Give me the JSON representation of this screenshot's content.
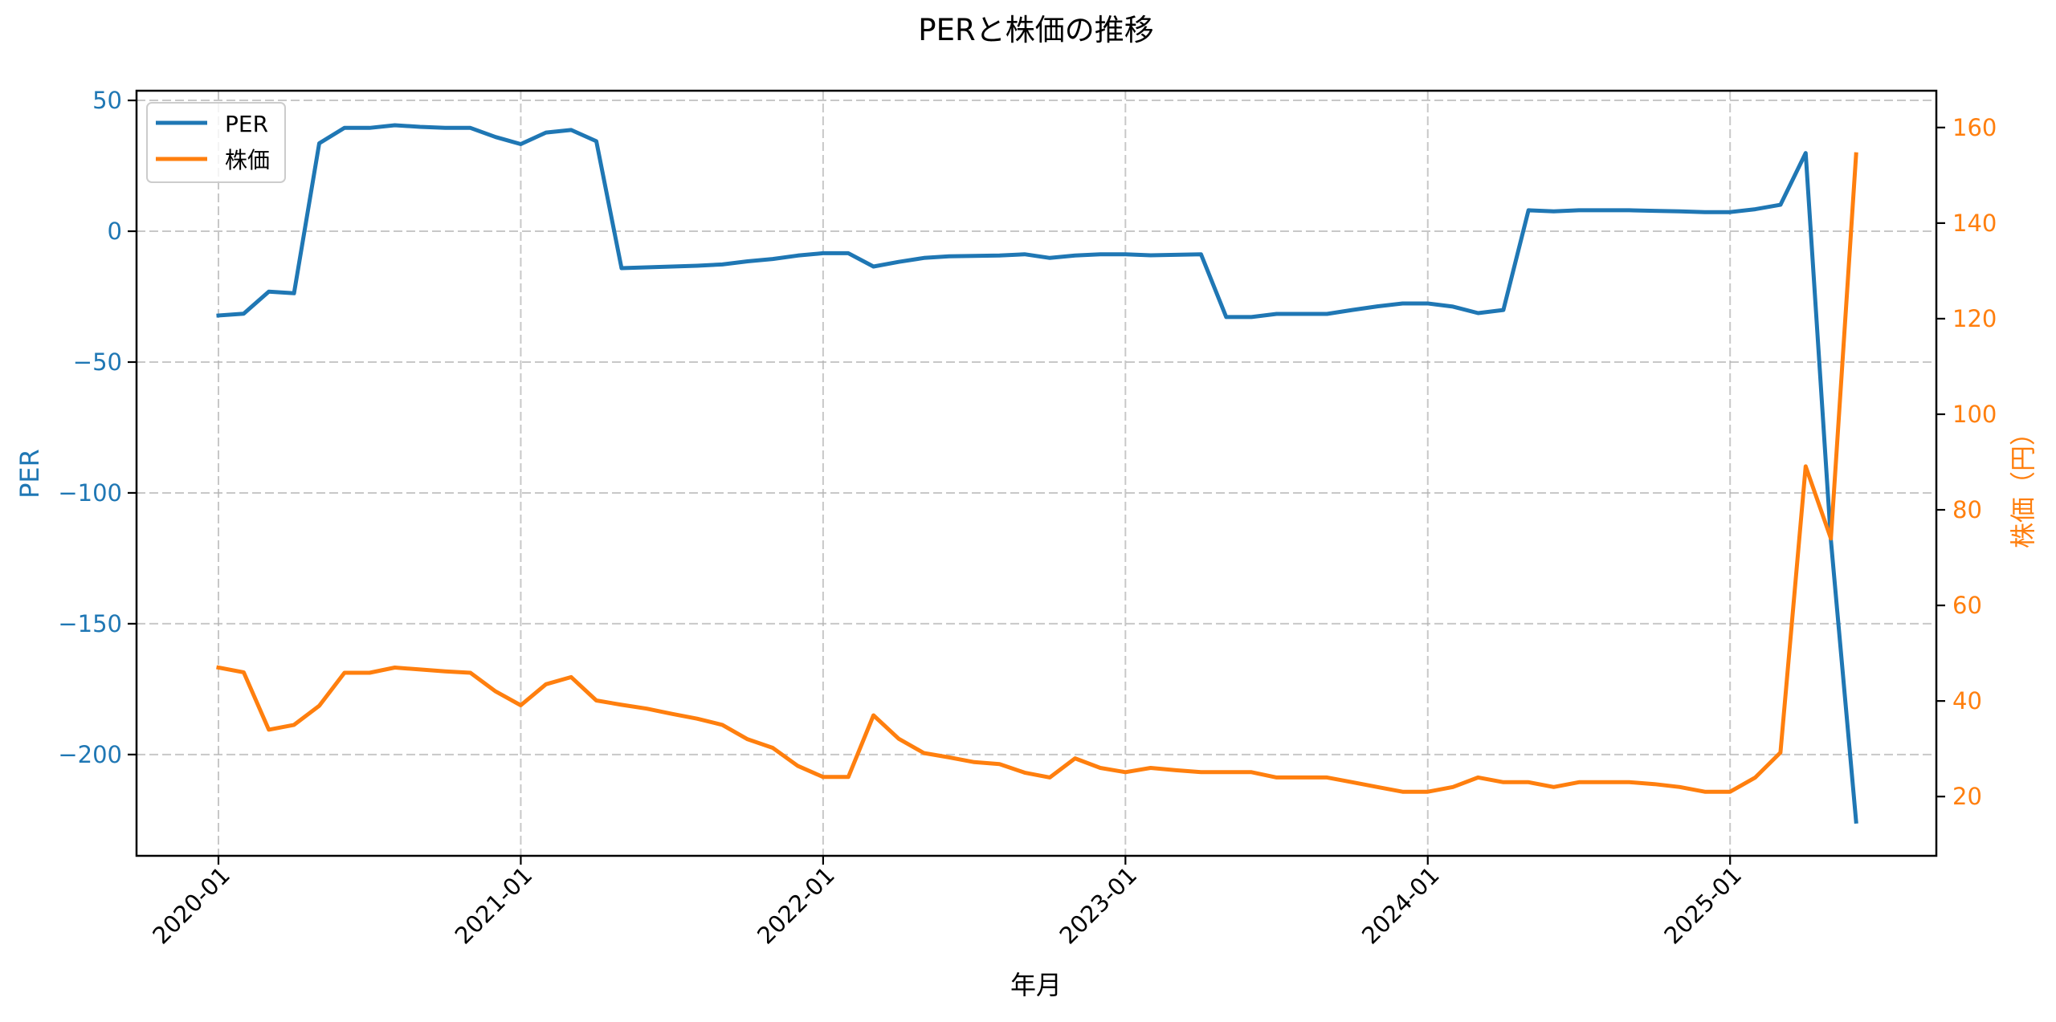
{
  "chart_data": {
    "type": "line",
    "title": "PERと株価の推移",
    "xlabel": "年月",
    "ylabel": "PER",
    "ylabel_right": "株価（円）",
    "x_tick_labels": [
      "2020-01",
      "2021-01",
      "2022-01",
      "2023-01",
      "2024-01",
      "2025-01"
    ],
    "y_ticks_left": [
      50,
      0,
      -50,
      -100,
      -150,
      -200
    ],
    "y_ticks_right": [
      20,
      40,
      60,
      80,
      100,
      120,
      140,
      160
    ],
    "ylim_left": [
      -238.7,
      53.7
    ],
    "ylim_right": [
      7.6,
      167.7
    ],
    "grid": true,
    "legend_position": "upper left",
    "x": [
      "2020-01",
      "2020-02",
      "2020-03",
      "2020-04",
      "2020-05",
      "2020-06",
      "2020-07",
      "2020-08",
      "2020-09",
      "2020-10",
      "2020-11",
      "2020-12",
      "2021-01",
      "2021-02",
      "2021-03",
      "2021-04",
      "2021-05",
      "2021-06",
      "2021-07",
      "2021-08",
      "2021-09",
      "2021-10",
      "2021-11",
      "2021-12",
      "2022-01",
      "2022-02",
      "2022-03",
      "2022-04",
      "2022-05",
      "2022-06",
      "2022-07",
      "2022-08",
      "2022-09",
      "2022-10",
      "2022-11",
      "2022-12",
      "2023-01",
      "2023-02",
      "2023-03",
      "2023-04",
      "2023-05",
      "2023-06",
      "2023-07",
      "2023-08",
      "2023-09",
      "2023-10",
      "2023-11",
      "2023-12",
      "2024-01",
      "2024-02",
      "2024-03",
      "2024-04",
      "2024-05",
      "2024-06",
      "2024-07",
      "2024-08",
      "2024-09",
      "2024-10",
      "2024-11",
      "2024-12",
      "2025-01",
      "2025-02",
      "2025-03",
      "2025-04",
      "2025-05",
      "2025-06"
    ],
    "series": [
      {
        "name": "PER",
        "axis": "left",
        "color": "#1f77b4",
        "values": [
          -32.2,
          -31.5,
          -23.1,
          -23.7,
          33.6,
          39.5,
          39.5,
          40.5,
          39.9,
          39.5,
          39.5,
          36.0,
          33.3,
          37.7,
          38.7,
          34.4,
          -14.1,
          -13.8,
          -13.5,
          -13.2,
          -12.7,
          -11.5,
          -10.6,
          -9.3,
          -8.4,
          -8.4,
          -13.5,
          -11.7,
          -10.2,
          -9.6,
          -9.4,
          -9.3,
          -8.8,
          -10.2,
          -9.3,
          -8.8,
          -8.8,
          -9.2,
          -9.0,
          -8.8,
          -32.8,
          -32.8,
          -31.6,
          -31.6,
          -31.6,
          -30.1,
          -28.7,
          -27.6,
          -27.6,
          -28.8,
          -31.3,
          -30.1,
          8.0,
          7.6,
          8.0,
          8.0,
          8.0,
          7.8,
          7.6,
          7.3,
          7.3,
          8.4,
          10.1,
          29.9,
          -118.0,
          -225.6
        ]
      },
      {
        "name": "株価",
        "axis": "right",
        "color": "#ff7f0e",
        "values": [
          47.0,
          46.0,
          34.0,
          35.0,
          39.0,
          45.9,
          45.9,
          47.0,
          46.6,
          46.2,
          45.9,
          42.0,
          39.1,
          43.5,
          45.0,
          40.1,
          39.2,
          38.4,
          37.3,
          36.3,
          35.0,
          32.0,
          30.2,
          26.4,
          24.1,
          24.1,
          37.0,
          32.1,
          29.1,
          28.2,
          27.2,
          26.8,
          25.0,
          24.0,
          28.0,
          26.0,
          25.1,
          26.0,
          25.5,
          25.1,
          25.1,
          25.1,
          24.0,
          24.0,
          24.0,
          23.0,
          22.0,
          21.0,
          21.0,
          22.0,
          24.0,
          23.0,
          23.0,
          22.0,
          23.0,
          23.0,
          23.0,
          22.6,
          22.0,
          21.0,
          21.0,
          24.0,
          29.2,
          89.1,
          74.0,
          154.4
        ]
      }
    ]
  },
  "legend": {
    "items": [
      {
        "label": "PER",
        "color": "#1f77b4"
      },
      {
        "label": "株価",
        "color": "#ff7f0e"
      }
    ]
  },
  "colors": {
    "left_axis": "#1f77b4",
    "right_axis": "#ff7f0e",
    "grid": "#b0b0b0"
  }
}
